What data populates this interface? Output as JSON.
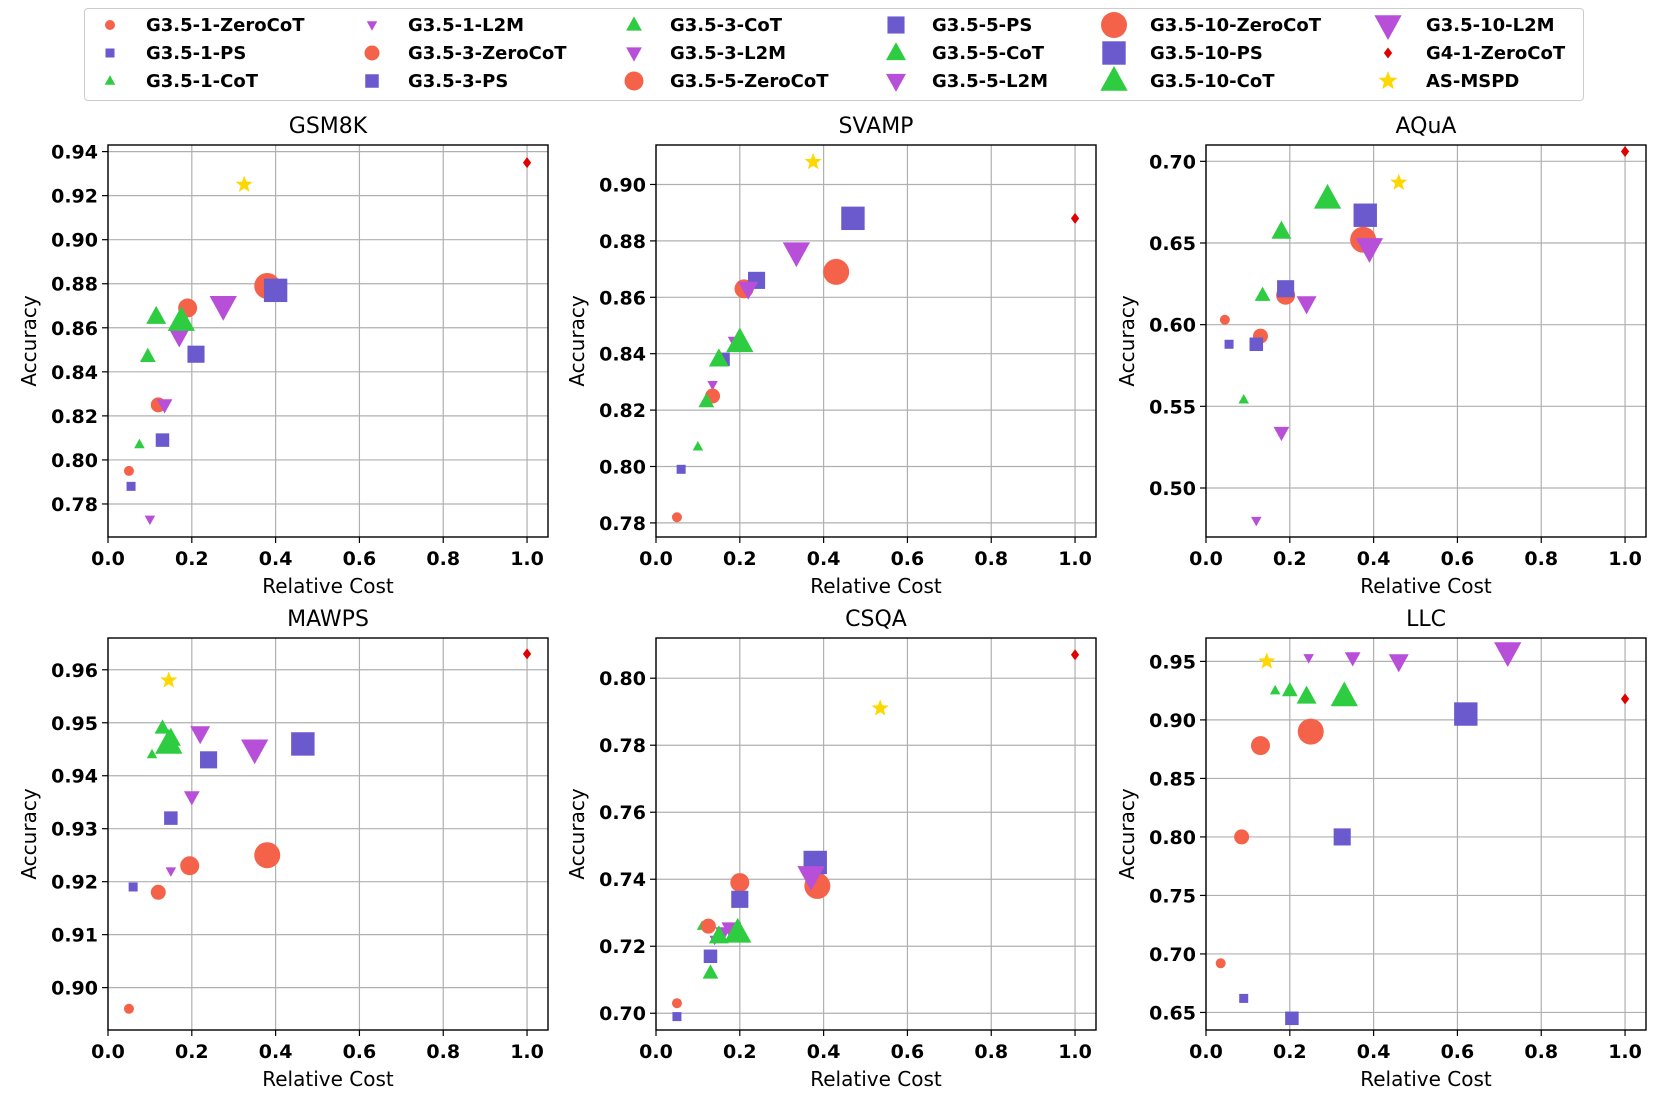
{
  "legend": [
    {
      "name": "G3.5-1-ZeroCoT",
      "marker": "circle",
      "size": 1,
      "color": "#f4624a"
    },
    {
      "name": "G3.5-1-PS",
      "marker": "square",
      "size": 1,
      "color": "#6a5acd"
    },
    {
      "name": "G3.5-1-CoT",
      "marker": "triangle-up",
      "size": 1,
      "color": "#2ecc40"
    },
    {
      "name": "G3.5-1-L2M",
      "marker": "triangle-down",
      "size": 1,
      "color": "#b84fd8"
    },
    {
      "name": "G3.5-3-ZeroCoT",
      "marker": "circle",
      "size": 3,
      "color": "#f4624a"
    },
    {
      "name": "G3.5-3-PS",
      "marker": "square",
      "size": 3,
      "color": "#6a5acd"
    },
    {
      "name": "G3.5-3-CoT",
      "marker": "triangle-up",
      "size": 3,
      "color": "#2ecc40"
    },
    {
      "name": "G3.5-3-L2M",
      "marker": "triangle-down",
      "size": 3,
      "color": "#b84fd8"
    },
    {
      "name": "G3.5-5-ZeroCoT",
      "marker": "circle",
      "size": 5,
      "color": "#f4624a"
    },
    {
      "name": "G3.5-5-PS",
      "marker": "square",
      "size": 5,
      "color": "#6a5acd"
    },
    {
      "name": "G3.5-5-CoT",
      "marker": "triangle-up",
      "size": 5,
      "color": "#2ecc40"
    },
    {
      "name": "G3.5-5-L2M",
      "marker": "triangle-down",
      "size": 5,
      "color": "#b84fd8"
    },
    {
      "name": "G3.5-10-ZeroCoT",
      "marker": "circle",
      "size": 10,
      "color": "#f4624a"
    },
    {
      "name": "G3.5-10-PS",
      "marker": "square",
      "size": 10,
      "color": "#6a5acd"
    },
    {
      "name": "G3.5-10-CoT",
      "marker": "triangle-up",
      "size": 10,
      "color": "#2ecc40"
    },
    {
      "name": "G3.5-10-L2M",
      "marker": "triangle-down",
      "size": 10,
      "color": "#b84fd8"
    },
    {
      "name": "G4-1-ZeroCoT",
      "marker": "diamond",
      "size": 1,
      "color": "#e00000"
    },
    {
      "name": "AS-MSPD",
      "marker": "star",
      "size": 2,
      "color": "#ffd700"
    }
  ],
  "chart_data": [
    {
      "type": "scatter",
      "title": "GSM8K",
      "xlabel": "Relative Cost",
      "ylabel": "Accuracy",
      "xlim": [
        0.0,
        1.05
      ],
      "ylim": [
        0.765,
        0.943
      ],
      "grid": true,
      "xticks": [
        0.0,
        0.2,
        0.4,
        0.6,
        0.8,
        1.0
      ],
      "xtick_labels": [
        "0.0",
        "0.2",
        "0.4",
        "0.6",
        "0.8",
        "1.0"
      ],
      "yticks": [
        0.78,
        0.8,
        0.82,
        0.84,
        0.86,
        0.88,
        0.9,
        0.92,
        0.94
      ],
      "ytick_labels": [
        "0.78",
        "0.80",
        "0.82",
        "0.84",
        "0.86",
        "0.88",
        "0.90",
        "0.92",
        "0.94"
      ],
      "points": [
        {
          "series": "G3.5-1-ZeroCoT",
          "x": 0.05,
          "y": 0.795
        },
        {
          "series": "G3.5-1-PS",
          "x": 0.055,
          "y": 0.788
        },
        {
          "series": "G3.5-1-CoT",
          "x": 0.075,
          "y": 0.807
        },
        {
          "series": "G3.5-1-L2M",
          "x": 0.1,
          "y": 0.773
        },
        {
          "series": "G3.5-3-ZeroCoT",
          "x": 0.12,
          "y": 0.825
        },
        {
          "series": "G3.5-3-PS",
          "x": 0.13,
          "y": 0.809
        },
        {
          "series": "G3.5-3-CoT",
          "x": 0.095,
          "y": 0.847
        },
        {
          "series": "G3.5-3-L2M",
          "x": 0.135,
          "y": 0.825
        },
        {
          "series": "G3.5-5-ZeroCoT",
          "x": 0.19,
          "y": 0.869
        },
        {
          "series": "G3.5-5-PS",
          "x": 0.21,
          "y": 0.848
        },
        {
          "series": "G3.5-5-CoT",
          "x": 0.115,
          "y": 0.865
        },
        {
          "series": "G3.5-5-L2M",
          "x": 0.17,
          "y": 0.856
        },
        {
          "series": "G3.5-10-ZeroCoT",
          "x": 0.38,
          "y": 0.879
        },
        {
          "series": "G3.5-10-PS",
          "x": 0.4,
          "y": 0.877
        },
        {
          "series": "G3.5-10-CoT",
          "x": 0.175,
          "y": 0.863
        },
        {
          "series": "G3.5-10-L2M",
          "x": 0.275,
          "y": 0.87
        },
        {
          "series": "G4-1-ZeroCoT",
          "x": 1.0,
          "y": 0.935
        },
        {
          "series": "AS-MSPD",
          "x": 0.325,
          "y": 0.925
        }
      ]
    },
    {
      "type": "scatter",
      "title": "SVAMP",
      "xlabel": "Relative Cost",
      "ylabel": "Accuracy",
      "xlim": [
        0.0,
        1.05
      ],
      "ylim": [
        0.775,
        0.914
      ],
      "grid": true,
      "xticks": [
        0.0,
        0.2,
        0.4,
        0.6,
        0.8,
        1.0
      ],
      "xtick_labels": [
        "0.0",
        "0.2",
        "0.4",
        "0.6",
        "0.8",
        "1.0"
      ],
      "yticks": [
        0.78,
        0.8,
        0.82,
        0.84,
        0.86,
        0.88,
        0.9
      ],
      "ytick_labels": [
        "0.78",
        "0.80",
        "0.82",
        "0.84",
        "0.86",
        "0.88",
        "0.90"
      ],
      "points": [
        {
          "series": "G3.5-1-ZeroCoT",
          "x": 0.05,
          "y": 0.782
        },
        {
          "series": "G3.5-1-PS",
          "x": 0.06,
          "y": 0.799
        },
        {
          "series": "G3.5-1-CoT",
          "x": 0.1,
          "y": 0.807
        },
        {
          "series": "G3.5-1-L2M",
          "x": 0.135,
          "y": 0.829
        },
        {
          "series": "G3.5-3-ZeroCoT",
          "x": 0.135,
          "y": 0.825
        },
        {
          "series": "G3.5-3-PS",
          "x": 0.16,
          "y": 0.838
        },
        {
          "series": "G3.5-3-CoT",
          "x": 0.12,
          "y": 0.823
        },
        {
          "series": "G3.5-3-L2M",
          "x": 0.19,
          "y": 0.844
        },
        {
          "series": "G3.5-5-ZeroCoT",
          "x": 0.21,
          "y": 0.863
        },
        {
          "series": "G3.5-5-PS",
          "x": 0.24,
          "y": 0.866
        },
        {
          "series": "G3.5-5-CoT",
          "x": 0.15,
          "y": 0.838
        },
        {
          "series": "G3.5-5-L2M",
          "x": 0.22,
          "y": 0.863
        },
        {
          "series": "G3.5-10-ZeroCoT",
          "x": 0.43,
          "y": 0.869
        },
        {
          "series": "G3.5-10-PS",
          "x": 0.47,
          "y": 0.888
        },
        {
          "series": "G3.5-10-CoT",
          "x": 0.2,
          "y": 0.844
        },
        {
          "series": "G3.5-10-L2M",
          "x": 0.335,
          "y": 0.876
        },
        {
          "series": "G4-1-ZeroCoT",
          "x": 1.0,
          "y": 0.888
        },
        {
          "series": "AS-MSPD",
          "x": 0.375,
          "y": 0.908
        }
      ]
    },
    {
      "type": "scatter",
      "title": "AQuA",
      "xlabel": "Relative Cost",
      "ylabel": "Accuracy",
      "xlim": [
        0.0,
        1.05
      ],
      "ylim": [
        0.47,
        0.71
      ],
      "grid": true,
      "xticks": [
        0.0,
        0.2,
        0.4,
        0.6,
        0.8,
        1.0
      ],
      "xtick_labels": [
        "0.0",
        "0.2",
        "0.4",
        "0.6",
        "0.8",
        "1.0"
      ],
      "yticks": [
        0.5,
        0.55,
        0.6,
        0.65,
        0.7
      ],
      "ytick_labels": [
        "0.50",
        "0.55",
        "0.60",
        "0.65",
        "0.70"
      ],
      "points": [
        {
          "series": "G3.5-1-ZeroCoT",
          "x": 0.045,
          "y": 0.603
        },
        {
          "series": "G3.5-1-PS",
          "x": 0.055,
          "y": 0.588
        },
        {
          "series": "G3.5-1-CoT",
          "x": 0.09,
          "y": 0.554
        },
        {
          "series": "G3.5-1-L2M",
          "x": 0.12,
          "y": 0.48
        },
        {
          "series": "G3.5-3-ZeroCoT",
          "x": 0.13,
          "y": 0.593
        },
        {
          "series": "G3.5-3-PS",
          "x": 0.12,
          "y": 0.588
        },
        {
          "series": "G3.5-3-CoT",
          "x": 0.135,
          "y": 0.618
        },
        {
          "series": "G3.5-3-L2M",
          "x": 0.18,
          "y": 0.534
        },
        {
          "series": "G3.5-5-ZeroCoT",
          "x": 0.19,
          "y": 0.618
        },
        {
          "series": "G3.5-5-PS",
          "x": 0.19,
          "y": 0.622
        },
        {
          "series": "G3.5-5-CoT",
          "x": 0.18,
          "y": 0.657
        },
        {
          "series": "G3.5-5-L2M",
          "x": 0.24,
          "y": 0.613
        },
        {
          "series": "G3.5-10-ZeroCoT",
          "x": 0.375,
          "y": 0.652
        },
        {
          "series": "G3.5-10-PS",
          "x": 0.38,
          "y": 0.667
        },
        {
          "series": "G3.5-10-CoT",
          "x": 0.29,
          "y": 0.677
        },
        {
          "series": "G3.5-10-L2M",
          "x": 0.39,
          "y": 0.647
        },
        {
          "series": "G4-1-ZeroCoT",
          "x": 1.0,
          "y": 0.706
        },
        {
          "series": "AS-MSPD",
          "x": 0.46,
          "y": 0.687
        }
      ]
    },
    {
      "type": "scatter",
      "title": "MAWPS",
      "xlabel": "Relative Cost",
      "ylabel": "Accuracy",
      "xlim": [
        0.0,
        1.05
      ],
      "ylim": [
        0.892,
        0.966
      ],
      "grid": true,
      "xticks": [
        0.0,
        0.2,
        0.4,
        0.6,
        0.8,
        1.0
      ],
      "xtick_labels": [
        "0.0",
        "0.2",
        "0.4",
        "0.6",
        "0.8",
        "1.0"
      ],
      "yticks": [
        0.9,
        0.91,
        0.92,
        0.93,
        0.94,
        0.95,
        0.96
      ],
      "ytick_labels": [
        "0.90",
        "0.91",
        "0.92",
        "0.93",
        "0.94",
        "0.95",
        "0.96"
      ],
      "points": [
        {
          "series": "G3.5-1-ZeroCoT",
          "x": 0.05,
          "y": 0.896
        },
        {
          "series": "G3.5-1-PS",
          "x": 0.06,
          "y": 0.919
        },
        {
          "series": "G3.5-1-CoT",
          "x": 0.105,
          "y": 0.944
        },
        {
          "series": "G3.5-1-L2M",
          "x": 0.15,
          "y": 0.922
        },
        {
          "series": "G3.5-3-ZeroCoT",
          "x": 0.12,
          "y": 0.918
        },
        {
          "series": "G3.5-3-PS",
          "x": 0.15,
          "y": 0.932
        },
        {
          "series": "G3.5-3-CoT",
          "x": 0.13,
          "y": 0.949
        },
        {
          "series": "G3.5-3-L2M",
          "x": 0.2,
          "y": 0.936
        },
        {
          "series": "G3.5-5-ZeroCoT",
          "x": 0.195,
          "y": 0.923
        },
        {
          "series": "G3.5-5-PS",
          "x": 0.24,
          "y": 0.943
        },
        {
          "series": "G3.5-5-CoT",
          "x": 0.15,
          "y": 0.947
        },
        {
          "series": "G3.5-5-L2M",
          "x": 0.22,
          "y": 0.948
        },
        {
          "series": "G3.5-10-ZeroCoT",
          "x": 0.38,
          "y": 0.925
        },
        {
          "series": "G3.5-10-PS",
          "x": 0.465,
          "y": 0.946
        },
        {
          "series": "G3.5-10-CoT",
          "x": 0.145,
          "y": 0.946
        },
        {
          "series": "G3.5-10-L2M",
          "x": 0.35,
          "y": 0.945
        },
        {
          "series": "G4-1-ZeroCoT",
          "x": 1.0,
          "y": 0.963
        },
        {
          "series": "AS-MSPD",
          "x": 0.145,
          "y": 0.958
        }
      ]
    },
    {
      "type": "scatter",
      "title": "CSQA",
      "xlabel": "Relative Cost",
      "ylabel": "Accuracy",
      "xlim": [
        0.0,
        1.05
      ],
      "ylim": [
        0.695,
        0.812
      ],
      "grid": true,
      "xticks": [
        0.0,
        0.2,
        0.4,
        0.6,
        0.8,
        1.0
      ],
      "xtick_labels": [
        "0.0",
        "0.2",
        "0.4",
        "0.6",
        "0.8",
        "1.0"
      ],
      "yticks": [
        0.7,
        0.72,
        0.74,
        0.76,
        0.78,
        0.8
      ],
      "ytick_labels": [
        "0.70",
        "0.72",
        "0.74",
        "0.76",
        "0.78",
        "0.80"
      ],
      "points": [
        {
          "series": "G3.5-1-ZeroCoT",
          "x": 0.05,
          "y": 0.703
        },
        {
          "series": "G3.5-1-PS",
          "x": 0.05,
          "y": 0.699
        },
        {
          "series": "G3.5-1-CoT",
          "x": 0.11,
          "y": 0.726
        },
        {
          "series": "G3.5-1-L2M",
          "x": 0.14,
          "y": 0.722
        },
        {
          "series": "G3.5-3-ZeroCoT",
          "x": 0.125,
          "y": 0.726
        },
        {
          "series": "G3.5-3-PS",
          "x": 0.13,
          "y": 0.717
        },
        {
          "series": "G3.5-3-CoT",
          "x": 0.13,
          "y": 0.712
        },
        {
          "series": "G3.5-3-L2M",
          "x": 0.16,
          "y": 0.724
        },
        {
          "series": "G3.5-5-ZeroCoT",
          "x": 0.2,
          "y": 0.739
        },
        {
          "series": "G3.5-5-PS",
          "x": 0.2,
          "y": 0.734
        },
        {
          "series": "G3.5-5-CoT",
          "x": 0.15,
          "y": 0.723
        },
        {
          "series": "G3.5-5-L2M",
          "x": 0.18,
          "y": 0.725
        },
        {
          "series": "G3.5-10-ZeroCoT",
          "x": 0.385,
          "y": 0.738
        },
        {
          "series": "G3.5-10-PS",
          "x": 0.38,
          "y": 0.745
        },
        {
          "series": "G3.5-10-CoT",
          "x": 0.195,
          "y": 0.724
        },
        {
          "series": "G3.5-10-L2M",
          "x": 0.37,
          "y": 0.741
        },
        {
          "series": "G4-1-ZeroCoT",
          "x": 1.0,
          "y": 0.807
        },
        {
          "series": "AS-MSPD",
          "x": 0.535,
          "y": 0.791
        }
      ]
    },
    {
      "type": "scatter",
      "title": "LLC",
      "xlabel": "Relative Cost",
      "ylabel": "Accuracy",
      "xlim": [
        0.0,
        1.05
      ],
      "ylim": [
        0.635,
        0.97
      ],
      "grid": true,
      "xticks": [
        0.0,
        0.2,
        0.4,
        0.6,
        0.8,
        1.0
      ],
      "xtick_labels": [
        "0.0",
        "0.2",
        "0.4",
        "0.6",
        "0.8",
        "1.0"
      ],
      "yticks": [
        0.65,
        0.7,
        0.75,
        0.8,
        0.85,
        0.9,
        0.95
      ],
      "ytick_labels": [
        "0.65",
        "0.70",
        "0.75",
        "0.80",
        "0.85",
        "0.90",
        "0.95"
      ],
      "points": [
        {
          "series": "G3.5-1-ZeroCoT",
          "x": 0.035,
          "y": 0.692
        },
        {
          "series": "G3.5-1-PS",
          "x": 0.09,
          "y": 0.662
        },
        {
          "series": "G3.5-1-CoT",
          "x": 0.165,
          "y": 0.925
        },
        {
          "series": "G3.5-1-L2M",
          "x": 0.245,
          "y": 0.953
        },
        {
          "series": "G3.5-3-ZeroCoT",
          "x": 0.085,
          "y": 0.8
        },
        {
          "series": "G3.5-3-PS",
          "x": 0.205,
          "y": 0.645
        },
        {
          "series": "G3.5-3-CoT",
          "x": 0.2,
          "y": 0.925
        },
        {
          "series": "G3.5-3-L2M",
          "x": 0.35,
          "y": 0.953
        },
        {
          "series": "G3.5-5-ZeroCoT",
          "x": 0.13,
          "y": 0.878
        },
        {
          "series": "G3.5-5-PS",
          "x": 0.325,
          "y": 0.8
        },
        {
          "series": "G3.5-5-CoT",
          "x": 0.24,
          "y": 0.92
        },
        {
          "series": "G3.5-5-L2M",
          "x": 0.46,
          "y": 0.95
        },
        {
          "series": "G3.5-10-ZeroCoT",
          "x": 0.25,
          "y": 0.89
        },
        {
          "series": "G3.5-10-PS",
          "x": 0.62,
          "y": 0.905
        },
        {
          "series": "G3.5-10-CoT",
          "x": 0.33,
          "y": 0.92
        },
        {
          "series": "G3.5-10-L2M",
          "x": 0.72,
          "y": 0.958
        },
        {
          "series": "G4-1-ZeroCoT",
          "x": 1.0,
          "y": 0.918
        },
        {
          "series": "AS-MSPD",
          "x": 0.145,
          "y": 0.95
        }
      ]
    }
  ]
}
